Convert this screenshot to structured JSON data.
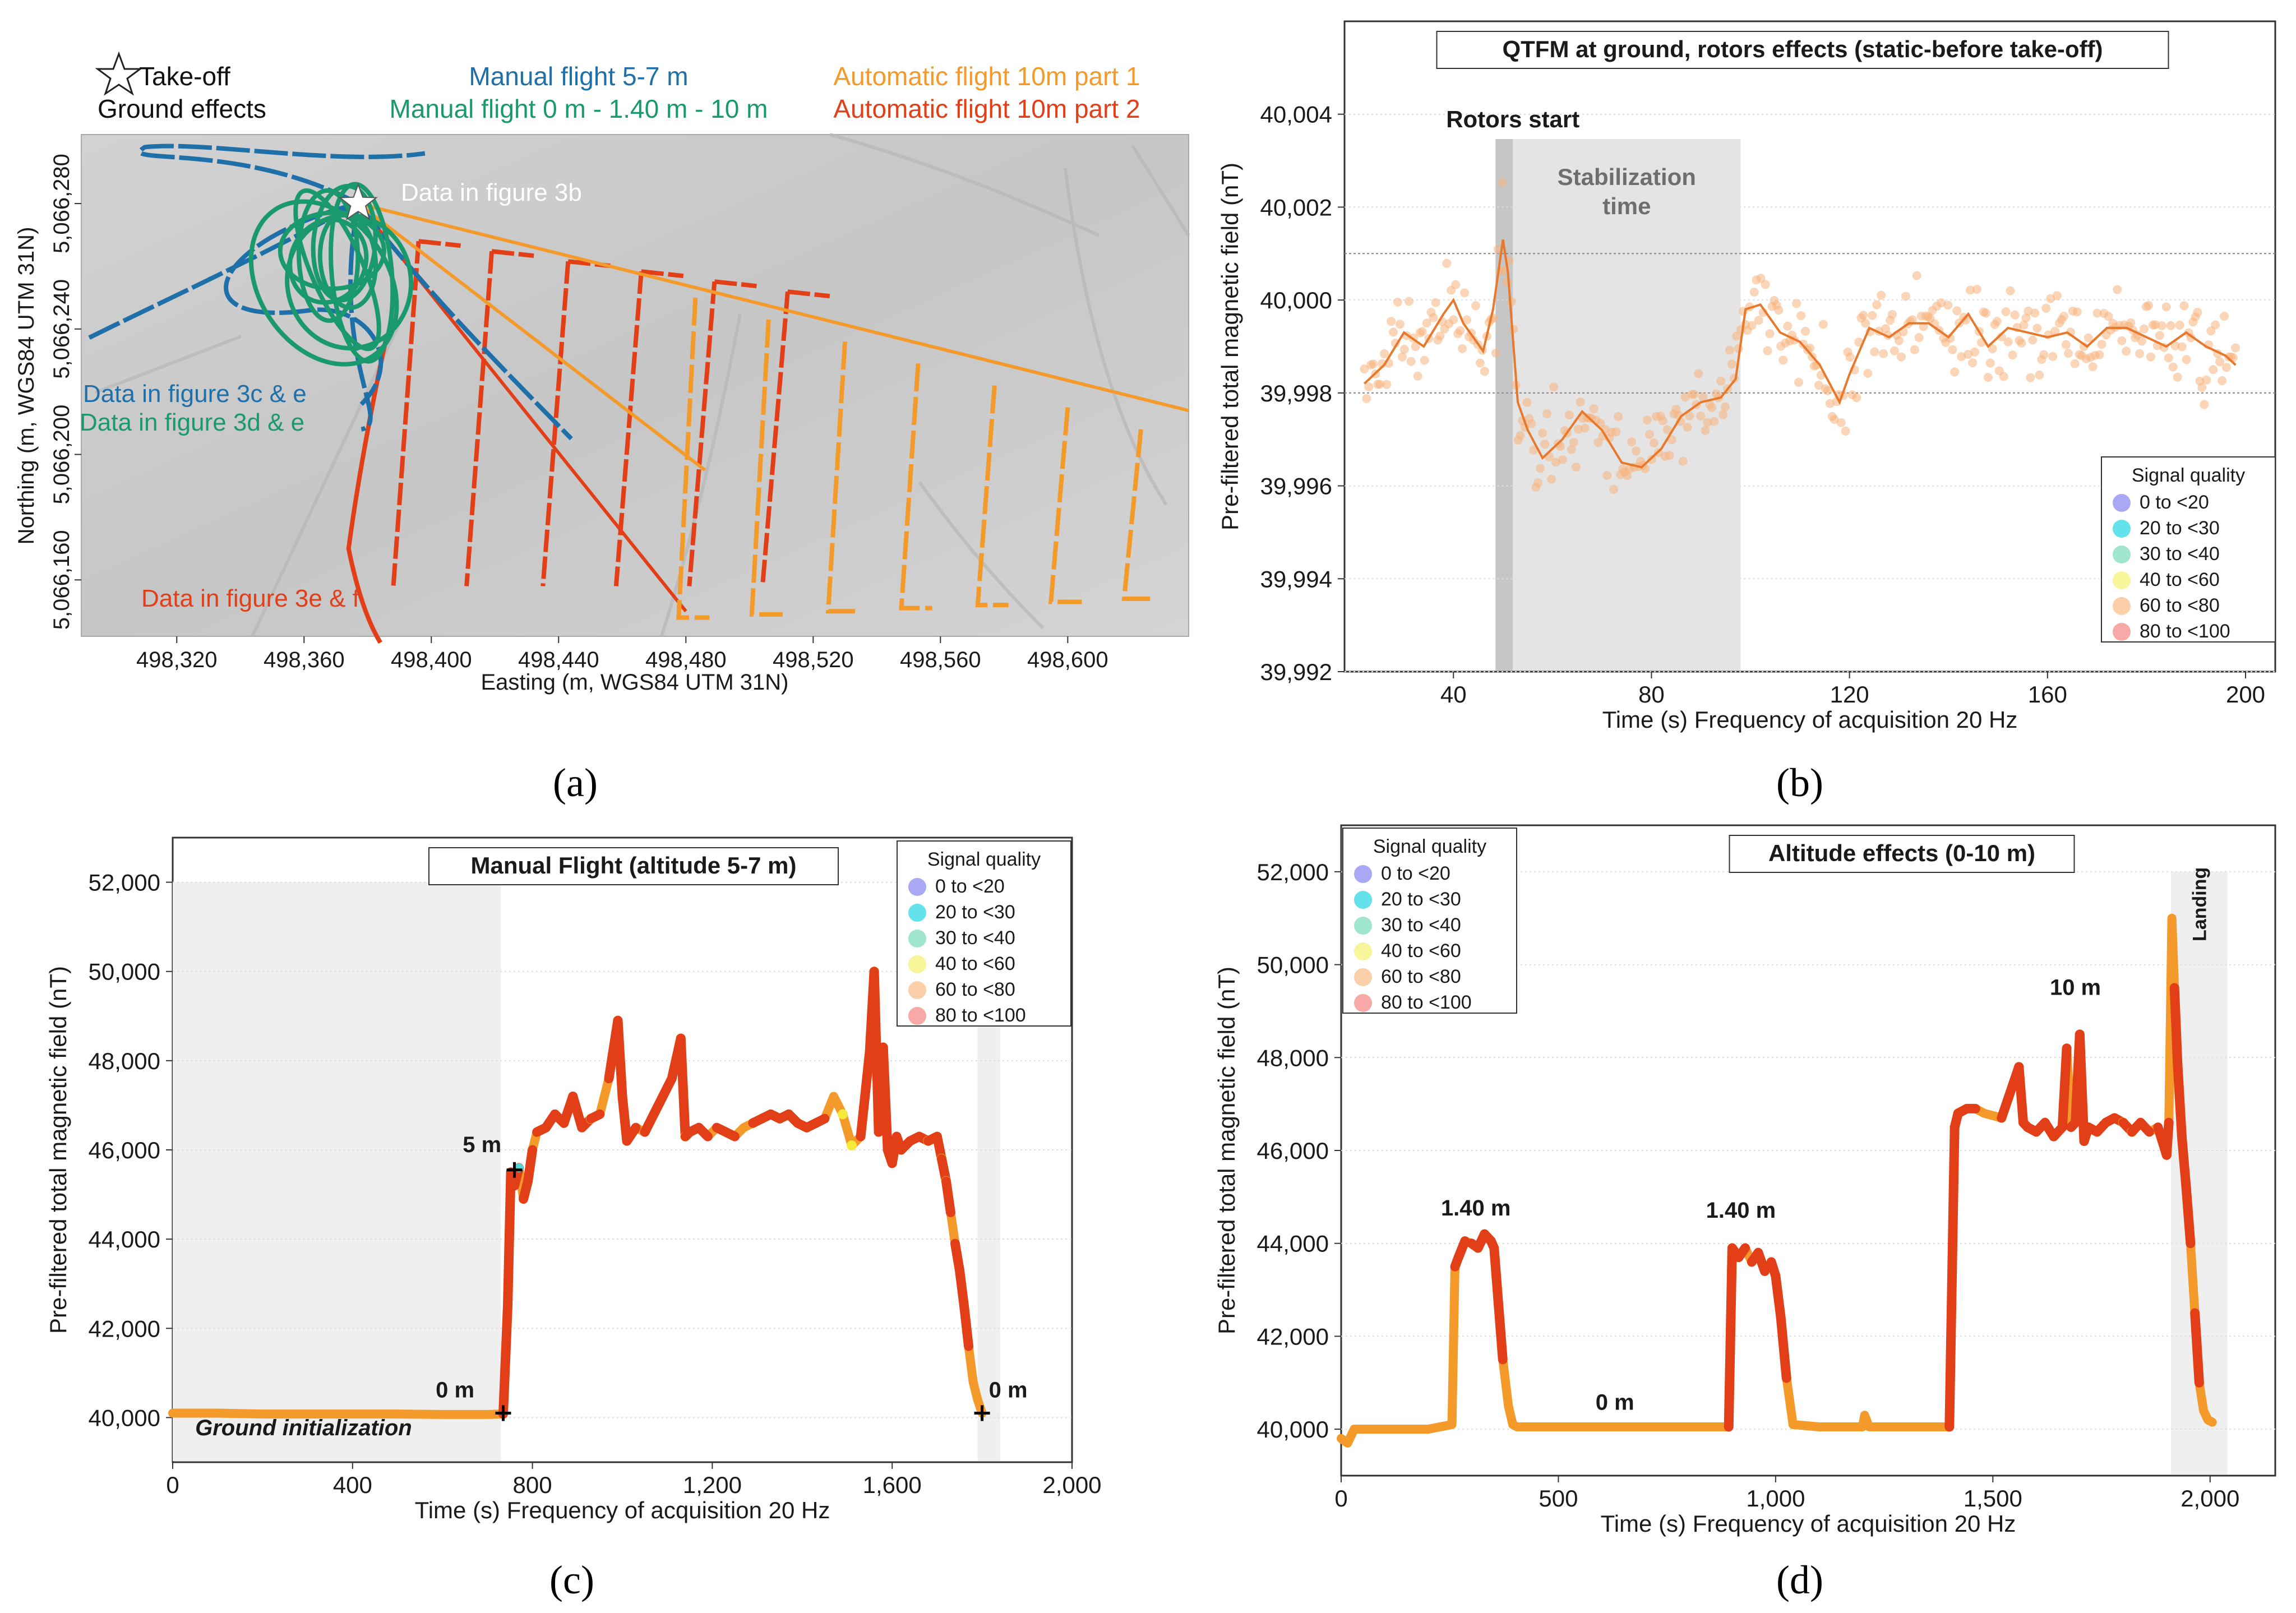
{
  "figure_labels": [
    "(a)",
    "(b)",
    "(c)",
    "(d)"
  ],
  "colors": {
    "manual_5_7": "#1f6fa8",
    "manual_0_10": "#1a9a6c",
    "auto_part1": "#f39a2a",
    "auto_part2": "#e23e17",
    "orange_line": "#e8792c",
    "orange_dots": "#f7b27c"
  },
  "chart_data": [
    {
      "id": "a",
      "type": "map",
      "xlabel": "Easting (m, WGS84 UTM 31N)",
      "ylabel": "Northing (m, WGS84 UTM 31N)",
      "xticks": [
        "498,320",
        "498,360",
        "498,400",
        "498,440",
        "498,480",
        "498,520",
        "498,560",
        "498,600"
      ],
      "yticks": [
        "5,066,160",
        "5,066,200",
        "5,066,240",
        "5,066,280"
      ],
      "xlim": [
        498290,
        498638
      ],
      "ylim": [
        5066142,
        5066302
      ],
      "legend": {
        "takeoff": "Take-off",
        "ground": "Ground effects",
        "manual_5_7": "Manual flight 5-7 m",
        "manual_0_10": "Manual flight 0 m - 1.40 m - 10 m",
        "auto1": "Automatic flight 10m part 1",
        "auto2": "Automatic flight 10m part 2"
      },
      "annotations": {
        "fig3b": "Data in figure 3b",
        "fig3ce": "Data in figure 3c & e",
        "fig3de": "Data in figure 3d & e",
        "fig3ef": "Data in figure 3e & f"
      },
      "takeoff_point": [
        498377,
        5066280
      ],
      "part2_lines_x": [
        498396,
        498419,
        498443,
        498466,
        498489,
        498512
      ],
      "part1_lines_x": [
        498483,
        498506,
        498530,
        498553,
        498577,
        498600,
        498623
      ]
    },
    {
      "id": "b",
      "type": "scatter+line",
      "title": "QTFM at ground, rotors effects (static-before take-off)",
      "xlabel": "Time (s) Frequency of acquisition 20 Hz",
      "ylabel": "Pre-filtered total magnetic field (nT)",
      "xlim": [
        18,
        206
      ],
      "ylim": [
        39992,
        40006
      ],
      "xticks": [
        40,
        80,
        120,
        160,
        200
      ],
      "yticks": [
        39992,
        39994,
        39996,
        39998,
        40000,
        40002,
        40004
      ],
      "ytick_labels": [
        "39,992",
        "39,994",
        "39,996",
        "39,998",
        "40,000",
        "40,002",
        "40,004"
      ],
      "dotted_h_lines": [
        39998,
        40001
      ],
      "annotations": {
        "rotors": "Rotors start",
        "stab1": "Stabilization",
        "stab2": "time"
      },
      "rotor_band": [
        48.5,
        52
      ],
      "stabilization_band": [
        52,
        98
      ],
      "trend": {
        "x": [
          22,
          26,
          30,
          34,
          38,
          40,
          42,
          44,
          46,
          48,
          50,
          51,
          53,
          55,
          58,
          62,
          66,
          70,
          74,
          78,
          82,
          86,
          90,
          94,
          97,
          99,
          102,
          106,
          110,
          114,
          118,
          120,
          124,
          128,
          132,
          136,
          140,
          144,
          148,
          152,
          156,
          160,
          164,
          168,
          172,
          176,
          180,
          184,
          188,
          192,
          196,
          198
        ],
        "y": [
          39998.2,
          39998.6,
          39999.3,
          39999.0,
          39999.7,
          40000.0,
          39999.5,
          39999.2,
          39998.9,
          39999.8,
          40001.3,
          40000.6,
          39997.8,
          39997.2,
          39996.6,
          39997.0,
          39997.6,
          39997.2,
          39996.5,
          39996.4,
          39996.8,
          39997.5,
          39997.8,
          39997.9,
          39998.3,
          39999.8,
          39999.9,
          39999.3,
          39999.1,
          39998.6,
          39997.8,
          39998.4,
          39999.4,
          39999.2,
          39999.5,
          39999.5,
          39999.2,
          39999.7,
          39999.0,
          39999.4,
          39999.3,
          39999.2,
          39999.3,
          39999.0,
          39999.4,
          39999.4,
          39999.2,
          39999.0,
          39999.3,
          39999.0,
          39998.8,
          39998.6
        ]
      },
      "legend_title": "Signal quality",
      "legend_items": [
        "0 to <20",
        "20 to <30",
        "30 to <40",
        "40 to <60",
        "60 to <80",
        "80 to <100"
      ],
      "legend_colors": [
        "#a8a8f5",
        "#63e2ec",
        "#9fe6cc",
        "#f8f59a",
        "#fbd0a8",
        "#f9a8a8"
      ]
    },
    {
      "id": "c",
      "type": "scatter+line",
      "title": "Manual Flight (altitude 5-7 m)",
      "xlabel": "Time (s) Frequency of acquisition 20 Hz",
      "ylabel": "Pre-filtered total magnetic field (nT)",
      "xlim": [
        0,
        2000
      ],
      "ylim": [
        39000,
        53000
      ],
      "xticks": [
        0,
        400,
        800,
        1200,
        1600,
        2000
      ],
      "xtick_labels": [
        "0",
        "400",
        "800",
        "1,200",
        "1,600",
        "2,000"
      ],
      "yticks": [
        40000,
        42000,
        44000,
        46000,
        48000,
        50000,
        52000
      ],
      "ytick_labels": [
        "40,000",
        "42,000",
        "44,000",
        "46,000",
        "48,000",
        "50,000",
        "52,000"
      ],
      "shaded_bands": [
        [
          0,
          730
        ],
        [
          1790,
          1840
        ]
      ],
      "shade_top": 52000,
      "annotations": {
        "ground": "Ground initialization",
        "five": "5 m",
        "zero_left": "0 m",
        "zero_right": "0 m"
      },
      "markers": [
        [
          735,
          40100
        ],
        [
          760,
          45550
        ],
        [
          1800,
          40100
        ]
      ],
      "series": {
        "x": [
          0,
          100,
          200,
          300,
          400,
          500,
          600,
          700,
          735,
          745,
          752,
          760,
          770,
          780,
          790,
          800,
          810,
          830,
          850,
          870,
          890,
          910,
          930,
          950,
          970,
          990,
          1000,
          1010,
          1030,
          1050,
          1070,
          1090,
          1110,
          1130,
          1140,
          1150,
          1170,
          1190,
          1210,
          1230,
          1250,
          1270,
          1290,
          1310,
          1330,
          1350,
          1370,
          1390,
          1410,
          1430,
          1450,
          1470,
          1490,
          1510,
          1530,
          1550,
          1560,
          1570,
          1580,
          1590,
          1600,
          1610,
          1620,
          1640,
          1660,
          1680,
          1700,
          1710,
          1720,
          1730,
          1740,
          1750,
          1760,
          1770,
          1780,
          1790,
          1800
        ],
        "y": [
          40100,
          40100,
          40080,
          40080,
          40080,
          40080,
          40070,
          40070,
          40080,
          42500,
          45500,
          45200,
          45600,
          44900,
          45300,
          46000,
          46400,
          46500,
          46800,
          46600,
          47200,
          46500,
          46700,
          46800,
          47600,
          48900,
          47200,
          46200,
          46500,
          46400,
          46800,
          47200,
          47600,
          48500,
          46300,
          46400,
          46500,
          46300,
          46500,
          46400,
          46300,
          46500,
          46600,
          46700,
          46800,
          46700,
          46800,
          46600,
          46500,
          46600,
          46700,
          47200,
          46800,
          46100,
          46300,
          48200,
          50000,
          46400,
          48300,
          46000,
          45700,
          46300,
          46000,
          46200,
          46300,
          46200,
          46300,
          45800,
          45300,
          44600,
          43900,
          43300,
          42500,
          41600,
          40800,
          40400,
          40100
        ]
      },
      "legend_title": "Signal quality",
      "legend_items": [
        "0 to <20",
        "20 to <30",
        "30 to <40",
        "40 to <60",
        "60 to <80",
        "80 to <100"
      ],
      "legend_colors": [
        "#a8a8f5",
        "#63e2ec",
        "#9fe6cc",
        "#f8f59a",
        "#fbd0a8",
        "#f9a8a8"
      ]
    },
    {
      "id": "d",
      "type": "scatter+line",
      "title": "Altitude effects (0-10 m)",
      "xlabel": "Time (s) Frequency of acquisition 20 Hz",
      "ylabel": "Pre-filtered total magnetic field (nT)",
      "xlim": [
        0,
        2150
      ],
      "ylim": [
        39000,
        53000
      ],
      "xticks": [
        0,
        500,
        1000,
        1500,
        2000
      ],
      "xtick_labels": [
        "0",
        "500",
        "1,000",
        "1,500",
        "2,000"
      ],
      "yticks": [
        40000,
        42000,
        44000,
        46000,
        48000,
        50000,
        52000
      ],
      "ytick_labels": [
        "40,000",
        "42,000",
        "44,000",
        "46,000",
        "48,000",
        "50,000",
        "52,000"
      ],
      "shaded_bands": [
        [
          1910,
          2040
        ]
      ],
      "shade_top": 52000,
      "annotations": {
        "first": "1.40 m",
        "second": "1.40 m",
        "zero": "0 m",
        "ten": "10 m",
        "landing": "Landing"
      },
      "series": {
        "x": [
          0,
          15,
          30,
          100,
          200,
          255,
          262,
          270,
          285,
          300,
          315,
          330,
          345,
          352,
          362,
          372,
          385,
          395,
          405,
          450,
          600,
          800,
          880,
          892,
          900,
          915,
          930,
          945,
          960,
          975,
          990,
          1000,
          1012,
          1025,
          1040,
          1100,
          1200,
          1205,
          1215,
          1300,
          1400,
          1412,
          1420,
          1440,
          1460,
          1480,
          1520,
          1560,
          1570,
          1580,
          1600,
          1620,
          1640,
          1660,
          1670,
          1680,
          1690,
          1700,
          1710,
          1720,
          1740,
          1760,
          1780,
          1800,
          1820,
          1840,
          1860,
          1880,
          1900,
          1905,
          1912,
          1918,
          1925,
          1935,
          1945,
          1955,
          1965,
          1975,
          1985,
          1995,
          2005
        ],
        "y": [
          39800,
          39700,
          40000,
          40000,
          40000,
          40100,
          43500,
          43700,
          44050,
          44000,
          43900,
          44200,
          44050,
          43900,
          42700,
          41500,
          40500,
          40100,
          40050,
          40050,
          40050,
          40050,
          40050,
          40050,
          43900,
          43700,
          43900,
          43600,
          43800,
          43400,
          43600,
          43300,
          42400,
          41100,
          40100,
          40050,
          40050,
          40300,
          40050,
          40050,
          40050,
          46500,
          46800,
          46900,
          46900,
          46800,
          46700,
          47800,
          46600,
          46500,
          46400,
          46600,
          46300,
          46500,
          48200,
          46500,
          46600,
          48500,
          46200,
          46500,
          46400,
          46600,
          46700,
          46600,
          46400,
          46600,
          46400,
          46500,
          45900,
          46600,
          51000,
          49500,
          47900,
          46300,
          45200,
          44000,
          42500,
          41000,
          40400,
          40200,
          40150
        ]
      },
      "legend_title": "Signal quality",
      "legend_items": [
        "0 to <20",
        "20 to <30",
        "30 to <40",
        "40 to <60",
        "60 to <80",
        "80 to <100"
      ],
      "legend_colors": [
        "#a8a8f5",
        "#63e2ec",
        "#9fe6cc",
        "#f8f59a",
        "#fbd0a8",
        "#f9a8a8"
      ]
    }
  ]
}
